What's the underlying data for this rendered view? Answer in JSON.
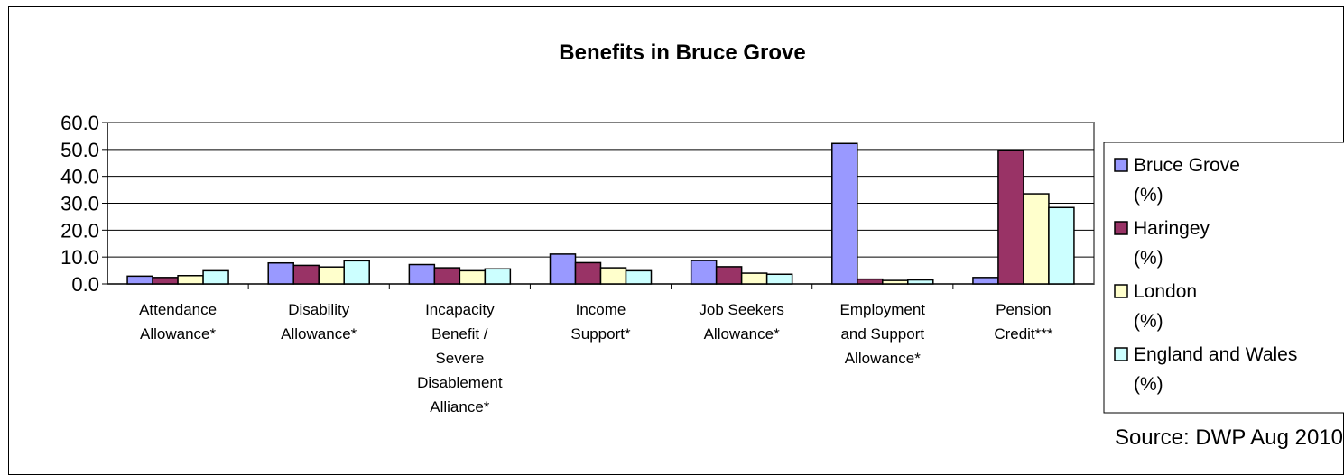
{
  "chart_data": {
    "type": "bar",
    "title": "Benefits in Bruce Grove",
    "categories": [
      "Attendance Allowance*",
      "Disability Allowance*",
      "Incapacity Benefit / Severe Disablement Alliance*",
      "Income Support*",
      "Job Seekers Allowance*",
      "Employment and Support Allowance*",
      "Pension Credit***"
    ],
    "category_lines": [
      [
        "Attendance",
        "Allowance*"
      ],
      [
        "Disability",
        "Allowance*"
      ],
      [
        "Incapacity",
        "Benefit /",
        "Severe",
        "Disablement",
        "Alliance*"
      ],
      [
        "Income",
        "Support*"
      ],
      [
        "Job Seekers",
        "Allowance*"
      ],
      [
        "Employment",
        "and Support",
        "Allowance*"
      ],
      [
        "Pension",
        "Credit***"
      ]
    ],
    "series": [
      {
        "name": "Bruce Grove (%)",
        "name_lines": [
          "Bruce Grove",
          "(%)"
        ],
        "color": "#9999ff",
        "values": [
          2.9,
          7.8,
          7.2,
          11.1,
          8.7,
          52.2,
          2.4
        ]
      },
      {
        "name": "Haringey (%)",
        "name_lines": [
          "Haringey",
          "(%)"
        ],
        "color": "#993366",
        "values": [
          2.4,
          6.9,
          6.0,
          7.9,
          6.4,
          1.8,
          49.7
        ]
      },
      {
        "name": "London (%)",
        "name_lines": [
          "London",
          "(%)"
        ],
        "color": "#ffffcc",
        "values": [
          3.1,
          6.3,
          4.9,
          6.0,
          4.0,
          1.3,
          33.5
        ]
      },
      {
        "name": "England and Wales (%)",
        "name_lines": [
          "England and Wales",
          "(%)"
        ],
        "color": "#ccffff",
        "values": [
          4.9,
          8.6,
          5.6,
          4.9,
          3.6,
          1.5,
          28.4
        ]
      }
    ],
    "ylim": [
      0,
      60
    ],
    "y_ticks": [
      "60.0",
      "50.0",
      "40.0",
      "30.0",
      "20.0",
      "10.0",
      "0.0"
    ],
    "y_tick_values": [
      60,
      50,
      40,
      30,
      20,
      10,
      0
    ],
    "grid": true,
    "legend_position": "right",
    "source": "Source: DWP Aug 2010"
  }
}
